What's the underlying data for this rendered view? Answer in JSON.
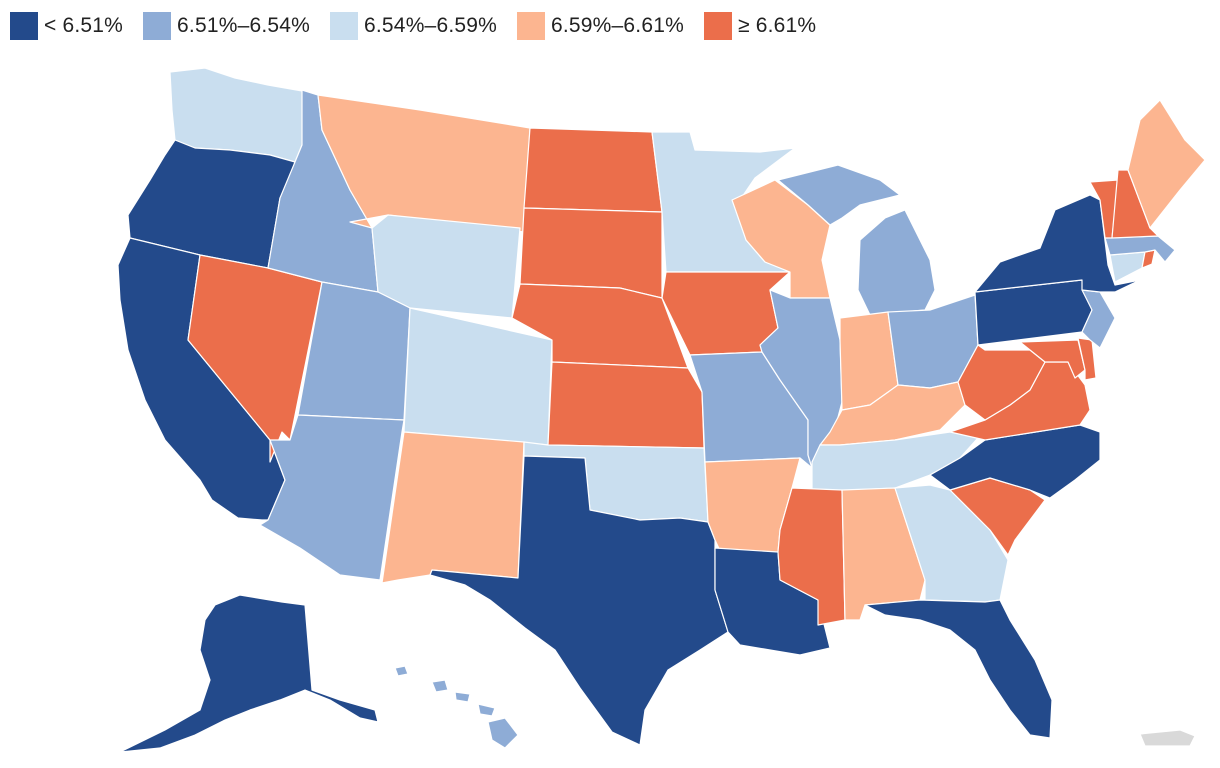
{
  "legend": {
    "items": [
      {
        "label": "< 6.51%",
        "color": "#234a8b"
      },
      {
        "label": "6.51%–6.54%",
        "color": "#8eacd6"
      },
      {
        "label": "6.54%–6.59%",
        "color": "#c9deef"
      },
      {
        "label": "6.59%–6.61%",
        "color": "#fcb590"
      },
      {
        "label": "≥ 6.61%",
        "color": "#eb6e4b"
      }
    ]
  },
  "map_data": {
    "no_data_color": "#d9d9d9",
    "states": [
      {
        "id": "WA",
        "bin": 2
      },
      {
        "id": "OR",
        "bin": 0
      },
      {
        "id": "CA",
        "bin": 0
      },
      {
        "id": "NV",
        "bin": 4
      },
      {
        "id": "ID",
        "bin": 1
      },
      {
        "id": "MT",
        "bin": 3
      },
      {
        "id": "WY",
        "bin": 2
      },
      {
        "id": "UT",
        "bin": 1
      },
      {
        "id": "CO",
        "bin": 2
      },
      {
        "id": "AZ",
        "bin": 1
      },
      {
        "id": "NM",
        "bin": 3
      },
      {
        "id": "ND",
        "bin": 4
      },
      {
        "id": "SD",
        "bin": 4
      },
      {
        "id": "NE",
        "bin": 4
      },
      {
        "id": "KS",
        "bin": 4
      },
      {
        "id": "OK",
        "bin": 2
      },
      {
        "id": "TX",
        "bin": 0
      },
      {
        "id": "MN",
        "bin": 2
      },
      {
        "id": "IA",
        "bin": 4
      },
      {
        "id": "MO",
        "bin": 1
      },
      {
        "id": "AR",
        "bin": 3
      },
      {
        "id": "LA",
        "bin": 0
      },
      {
        "id": "WI",
        "bin": 3
      },
      {
        "id": "IL",
        "bin": 1
      },
      {
        "id": "MI",
        "bin": 1
      },
      {
        "id": "IN",
        "bin": 3
      },
      {
        "id": "OH",
        "bin": 1
      },
      {
        "id": "KY",
        "bin": 3
      },
      {
        "id": "TN",
        "bin": 2
      },
      {
        "id": "MS",
        "bin": 4
      },
      {
        "id": "AL",
        "bin": 3
      },
      {
        "id": "GA",
        "bin": 2
      },
      {
        "id": "FL",
        "bin": 0
      },
      {
        "id": "SC",
        "bin": 4
      },
      {
        "id": "NC",
        "bin": 0
      },
      {
        "id": "VA",
        "bin": 4
      },
      {
        "id": "WV",
        "bin": 4
      },
      {
        "id": "MD",
        "bin": 4
      },
      {
        "id": "DE",
        "bin": 4
      },
      {
        "id": "PA",
        "bin": 0
      },
      {
        "id": "NJ",
        "bin": 1
      },
      {
        "id": "NY",
        "bin": 0
      },
      {
        "id": "CT",
        "bin": 2
      },
      {
        "id": "RI",
        "bin": 4
      },
      {
        "id": "MA",
        "bin": 1
      },
      {
        "id": "VT",
        "bin": 4
      },
      {
        "id": "NH",
        "bin": 4
      },
      {
        "id": "ME",
        "bin": 3
      },
      {
        "id": "AK",
        "bin": 0
      },
      {
        "id": "HI",
        "bin": 1
      },
      {
        "id": "PR",
        "bin": null
      }
    ]
  }
}
